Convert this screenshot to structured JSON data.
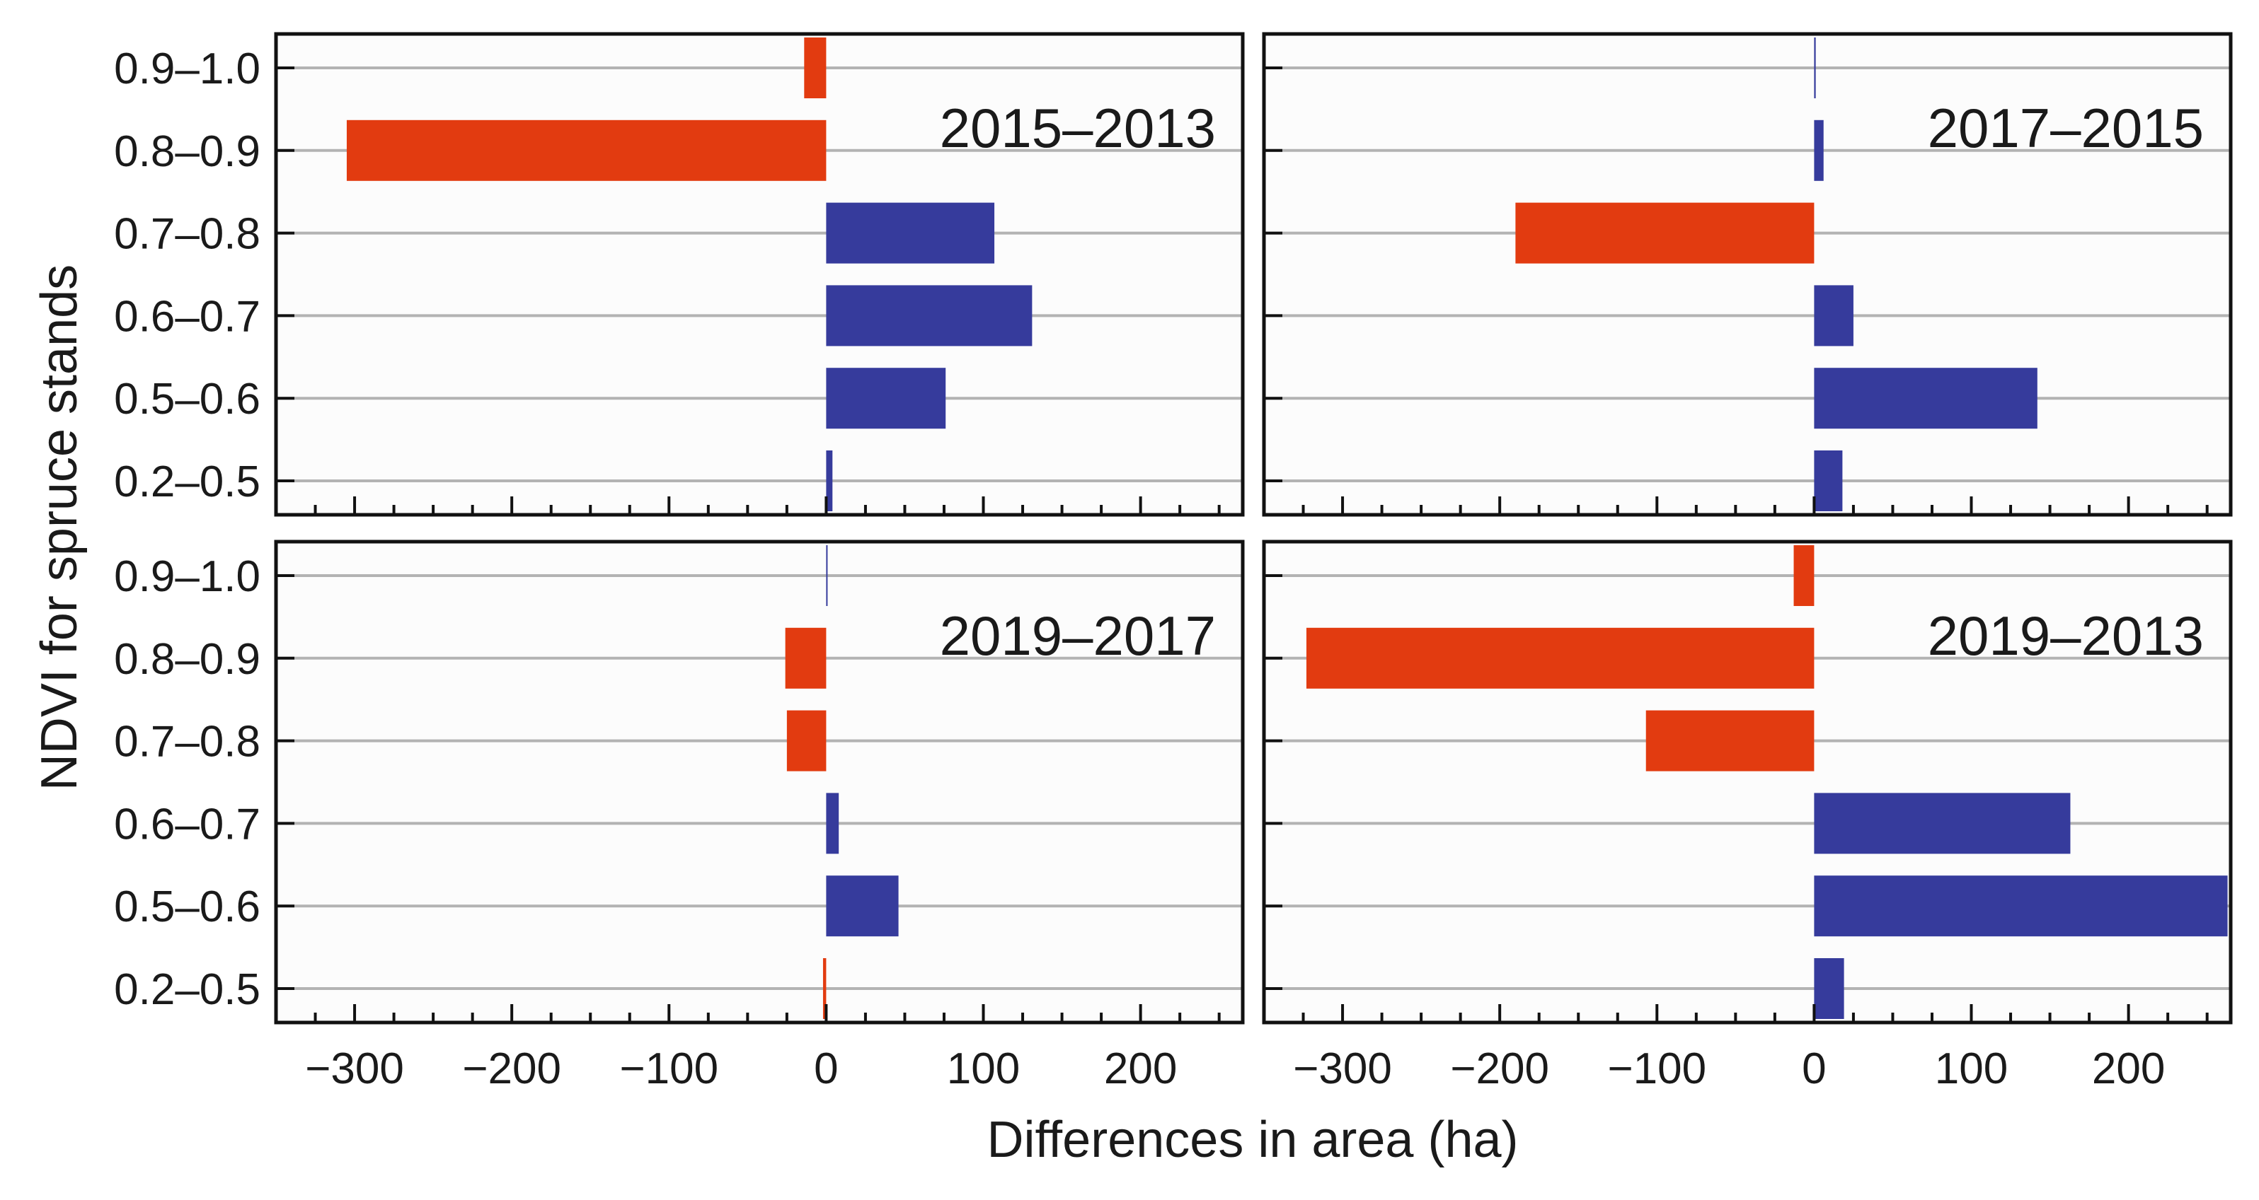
{
  "chart_data": {
    "type": "bar",
    "orientation": "horizontal",
    "layout": "2x2 panels",
    "categories": [
      "0.9–1.0",
      "0.8–0.9",
      "0.7–0.8",
      "0.6–0.7",
      "0.5–0.6",
      "0.2–0.5"
    ],
    "xlabel": "Differences in area (ha)",
    "ylabel": "NDVI for spruce stands",
    "xlim": [
      -350,
      265
    ],
    "xticks": [
      -300,
      -200,
      -100,
      0,
      100,
      200
    ],
    "xtick_labels": [
      "−300",
      "−200",
      "−100",
      "0",
      "100",
      "200"
    ],
    "grid": "horizontal",
    "colors": {
      "negative": "#e23b10",
      "positive": "#363b9c"
    },
    "panels": [
      {
        "title": "2015–2013",
        "values": [
          -14,
          -305,
          107,
          131,
          76,
          4
        ]
      },
      {
        "title": "2017–2015",
        "values": [
          1,
          6,
          -190,
          25,
          142,
          18
        ]
      },
      {
        "title": "2019–2017",
        "values": [
          0,
          -26,
          -25,
          8,
          46,
          -2
        ]
      },
      {
        "title": "2019–2013",
        "values": [
          -13,
          -323,
          -107,
          163,
          263,
          19
        ]
      }
    ]
  }
}
